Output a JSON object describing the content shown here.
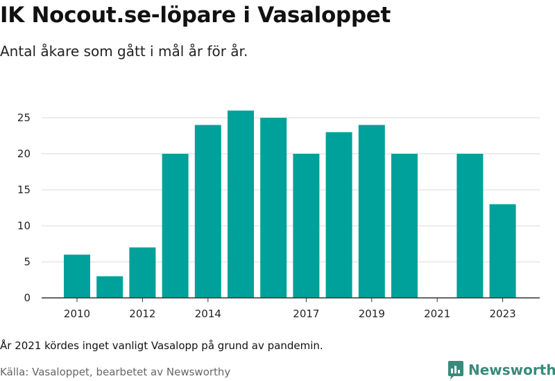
{
  "title": "IK Nocout.se-löpare i Vasaloppet",
  "subtitle": "Antal åkare som gått i mål år för år.",
  "note": "År 2021 kördes inget vanligt Vasalopp på grund av pandemin.",
  "source": "Källa: Vasaloppet, bearbetet av Newsworthy",
  "brand": {
    "name": "Newsworthy",
    "icon": "newsworthy-logo-icon",
    "color": "#3a8a7c"
  },
  "chart_data": {
    "type": "bar",
    "categories": [
      "2010",
      "2011",
      "2012",
      "2013",
      "2014",
      "2015",
      "2016",
      "2017",
      "2018",
      "2019",
      "2020",
      "2021",
      "2022",
      "2023"
    ],
    "values": [
      6,
      3,
      7,
      20,
      24,
      26,
      25,
      20,
      23,
      24,
      20,
      0,
      20,
      13
    ],
    "x_tick_labels": [
      {
        "category": "2010",
        "label": "2010"
      },
      {
        "category": "2012",
        "label": "2012"
      },
      {
        "category": "2014",
        "label": "2014"
      },
      {
        "category": "2017",
        "label": "2017"
      },
      {
        "category": "2019",
        "label": "2019"
      },
      {
        "category": "2021",
        "label": "2021"
      },
      {
        "category": "2023",
        "label": "2023"
      }
    ],
    "y_ticks": [
      0,
      5,
      10,
      15,
      20,
      25
    ],
    "ylim": [
      0,
      26
    ],
    "grid": true,
    "bar_color": "#00a19a"
  }
}
